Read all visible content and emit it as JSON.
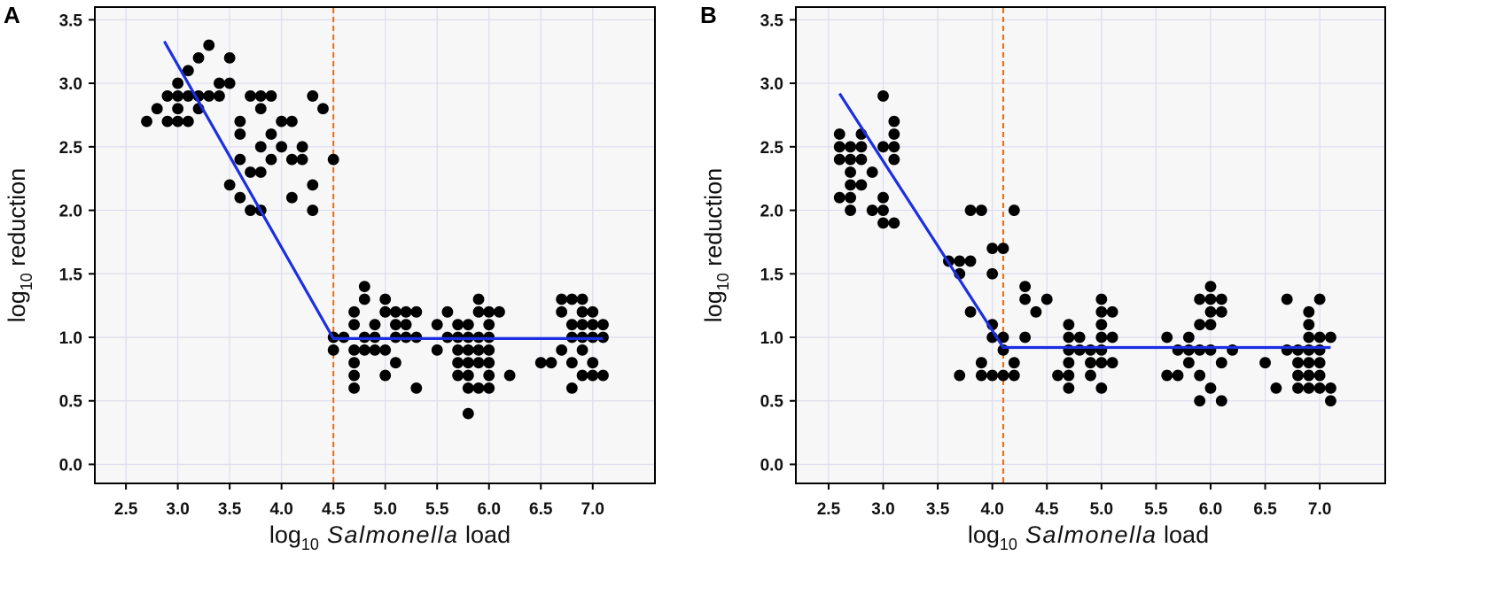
{
  "chart_data": [
    {
      "type": "scatter",
      "panel_label": "A",
      "xlabel": {
        "prefix": "log",
        "sub": "10",
        "italic": "Salmonella",
        "suffix": "load"
      },
      "ylabel": {
        "prefix": "log",
        "sub": "10",
        "suffix": "reduction"
      },
      "xlim": [
        2.2,
        7.6
      ],
      "ylim": [
        -0.15,
        3.6
      ],
      "xticks": [
        "2.5",
        "3.0",
        "3.5",
        "4.0",
        "4.5",
        "5.0",
        "5.5",
        "6.0",
        "6.5",
        "7.0"
      ],
      "yticks": [
        "0.0",
        "0.5",
        "1.0",
        "1.5",
        "2.0",
        "2.5",
        "3.0",
        "3.5"
      ],
      "breakpoint_x": 4.5,
      "fit_line": [
        [
          2.87,
          3.33
        ],
        [
          4.5,
          0.99
        ],
        [
          7.1,
          0.99
        ]
      ],
      "points": [
        [
          2.7,
          2.7
        ],
        [
          2.8,
          2.8
        ],
        [
          2.9,
          2.9
        ],
        [
          2.9,
          2.7
        ],
        [
          3.0,
          3.0
        ],
        [
          3.0,
          2.9
        ],
        [
          3.0,
          2.8
        ],
        [
          3.0,
          2.7
        ],
        [
          3.1,
          3.1
        ],
        [
          3.1,
          2.9
        ],
        [
          3.1,
          2.7
        ],
        [
          3.2,
          3.2
        ],
        [
          3.2,
          2.9
        ],
        [
          3.2,
          2.8
        ],
        [
          3.3,
          3.3
        ],
        [
          3.3,
          2.9
        ],
        [
          3.4,
          3.0
        ],
        [
          3.4,
          2.9
        ],
        [
          3.5,
          3.2
        ],
        [
          3.5,
          3.0
        ],
        [
          3.5,
          2.2
        ],
        [
          3.6,
          2.7
        ],
        [
          3.6,
          2.6
        ],
        [
          3.6,
          2.4
        ],
        [
          3.6,
          2.1
        ],
        [
          3.7,
          2.3
        ],
        [
          3.7,
          2.0
        ],
        [
          3.7,
          2.9
        ],
        [
          3.8,
          2.9
        ],
        [
          3.8,
          2.3
        ],
        [
          3.8,
          2.0
        ],
        [
          3.8,
          2.5
        ],
        [
          3.8,
          2.8
        ],
        [
          3.9,
          2.9
        ],
        [
          3.9,
          2.6
        ],
        [
          3.9,
          2.4
        ],
        [
          4.0,
          2.7
        ],
        [
          4.0,
          2.5
        ],
        [
          4.1,
          2.7
        ],
        [
          4.1,
          2.4
        ],
        [
          4.1,
          2.1
        ],
        [
          4.2,
          2.5
        ],
        [
          4.2,
          2.4
        ],
        [
          4.3,
          2.9
        ],
        [
          4.3,
          2.0
        ],
        [
          4.3,
          2.2
        ],
        [
          4.4,
          2.8
        ],
        [
          4.5,
          2.4
        ],
        [
          4.5,
          1.0
        ],
        [
          4.5,
          0.9
        ],
        [
          4.6,
          1.0
        ],
        [
          4.7,
          1.2
        ],
        [
          4.7,
          1.1
        ],
        [
          4.7,
          0.9
        ],
        [
          4.7,
          0.8
        ],
        [
          4.7,
          0.7
        ],
        [
          4.7,
          0.6
        ],
        [
          4.8,
          1.3
        ],
        [
          4.8,
          1.4
        ],
        [
          4.8,
          1.0
        ],
        [
          4.8,
          0.9
        ],
        [
          4.9,
          1.1
        ],
        [
          4.9,
          1.0
        ],
        [
          4.9,
          0.9
        ],
        [
          5.0,
          1.3
        ],
        [
          5.0,
          1.2
        ],
        [
          5.0,
          0.9
        ],
        [
          5.0,
          0.7
        ],
        [
          5.1,
          1.2
        ],
        [
          5.1,
          1.1
        ],
        [
          5.1,
          1.0
        ],
        [
          5.1,
          0.8
        ],
        [
          5.2,
          1.2
        ],
        [
          5.2,
          1.1
        ],
        [
          5.2,
          1.0
        ],
        [
          5.3,
          1.2
        ],
        [
          5.3,
          1.0
        ],
        [
          5.3,
          0.6
        ],
        [
          5.5,
          1.1
        ],
        [
          5.5,
          0.9
        ],
        [
          5.6,
          1.2
        ],
        [
          5.6,
          1.0
        ],
        [
          5.7,
          1.1
        ],
        [
          5.7,
          1.0
        ],
        [
          5.7,
          0.9
        ],
        [
          5.7,
          0.8
        ],
        [
          5.7,
          0.7
        ],
        [
          5.8,
          1.1
        ],
        [
          5.8,
          1.0
        ],
        [
          5.8,
          0.9
        ],
        [
          5.8,
          0.8
        ],
        [
          5.8,
          0.7
        ],
        [
          5.8,
          0.6
        ],
        [
          5.8,
          0.4
        ],
        [
          5.9,
          1.3
        ],
        [
          5.9,
          1.2
        ],
        [
          5.9,
          1.0
        ],
        [
          5.9,
          0.9
        ],
        [
          5.9,
          0.8
        ],
        [
          5.9,
          0.6
        ],
        [
          6.0,
          1.2
        ],
        [
          6.0,
          1.1
        ],
        [
          6.0,
          1.0
        ],
        [
          6.0,
          0.9
        ],
        [
          6.0,
          0.8
        ],
        [
          6.0,
          0.7
        ],
        [
          6.0,
          0.6
        ],
        [
          6.1,
          1.2
        ],
        [
          6.2,
          0.7
        ],
        [
          6.5,
          0.8
        ],
        [
          6.6,
          0.8
        ],
        [
          6.7,
          1.3
        ],
        [
          6.7,
          1.2
        ],
        [
          6.7,
          0.9
        ],
        [
          6.8,
          1.3
        ],
        [
          6.8,
          1.1
        ],
        [
          6.8,
          1.0
        ],
        [
          6.8,
          0.8
        ],
        [
          6.8,
          0.6
        ],
        [
          6.9,
          1.3
        ],
        [
          6.9,
          1.2
        ],
        [
          6.9,
          1.1
        ],
        [
          6.9,
          1.0
        ],
        [
          6.9,
          0.9
        ],
        [
          6.9,
          0.7
        ],
        [
          7.0,
          1.2
        ],
        [
          7.0,
          1.1
        ],
        [
          7.0,
          1.0
        ],
        [
          7.0,
          0.8
        ],
        [
          7.0,
          0.7
        ],
        [
          7.1,
          1.1
        ],
        [
          7.1,
          1.0
        ],
        [
          7.1,
          0.7
        ]
      ]
    },
    {
      "type": "scatter",
      "panel_label": "B",
      "xlabel": {
        "prefix": "log",
        "sub": "10",
        "italic": "Salmonella",
        "suffix": "load"
      },
      "ylabel": {
        "prefix": "log",
        "sub": "10",
        "suffix": "reduction"
      },
      "xlim": [
        2.2,
        7.6
      ],
      "ylim": [
        -0.15,
        3.6
      ],
      "xticks": [
        "2.5",
        "3.0",
        "3.5",
        "4.0",
        "4.5",
        "5.0",
        "5.5",
        "6.0",
        "6.5",
        "7.0"
      ],
      "yticks": [
        "0.0",
        "0.5",
        "1.0",
        "1.5",
        "2.0",
        "2.5",
        "3.0",
        "3.5"
      ],
      "breakpoint_x": 4.1,
      "fit_line": [
        [
          2.6,
          2.92
        ],
        [
          4.1,
          0.92
        ],
        [
          7.1,
          0.92
        ]
      ],
      "points": [
        [
          2.6,
          2.6
        ],
        [
          2.6,
          2.5
        ],
        [
          2.6,
          2.4
        ],
        [
          2.6,
          2.1
        ],
        [
          2.7,
          2.5
        ],
        [
          2.7,
          2.4
        ],
        [
          2.7,
          2.3
        ],
        [
          2.7,
          2.2
        ],
        [
          2.7,
          2.1
        ],
        [
          2.7,
          2.0
        ],
        [
          2.8,
          2.6
        ],
        [
          2.8,
          2.5
        ],
        [
          2.8,
          2.4
        ],
        [
          2.8,
          2.2
        ],
        [
          2.9,
          2.3
        ],
        [
          2.9,
          2.0
        ],
        [
          3.0,
          2.9
        ],
        [
          3.0,
          2.5
        ],
        [
          3.0,
          2.0
        ],
        [
          3.0,
          1.9
        ],
        [
          3.0,
          2.1
        ],
        [
          3.1,
          2.7
        ],
        [
          3.1,
          2.6
        ],
        [
          3.1,
          2.5
        ],
        [
          3.1,
          2.4
        ],
        [
          3.1,
          1.9
        ],
        [
          3.6,
          1.6
        ],
        [
          3.7,
          1.6
        ],
        [
          3.7,
          1.5
        ],
        [
          3.7,
          0.7
        ],
        [
          3.8,
          2.0
        ],
        [
          3.8,
          1.6
        ],
        [
          3.8,
          1.2
        ],
        [
          3.9,
          2.0
        ],
        [
          3.9,
          0.8
        ],
        [
          3.9,
          0.7
        ],
        [
          4.0,
          1.7
        ],
        [
          4.0,
          1.5
        ],
        [
          4.0,
          1.1
        ],
        [
          4.0,
          1.0
        ],
        [
          4.0,
          0.7
        ],
        [
          4.1,
          1.7
        ],
        [
          4.1,
          1.0
        ],
        [
          4.1,
          0.9
        ],
        [
          4.1,
          0.7
        ],
        [
          4.2,
          2.0
        ],
        [
          4.2,
          0.8
        ],
        [
          4.2,
          0.7
        ],
        [
          4.3,
          1.4
        ],
        [
          4.3,
          1.3
        ],
        [
          4.3,
          1.0
        ],
        [
          4.4,
          1.2
        ],
        [
          4.5,
          1.3
        ],
        [
          4.6,
          0.7
        ],
        [
          4.7,
          1.1
        ],
        [
          4.7,
          1.0
        ],
        [
          4.7,
          0.9
        ],
        [
          4.7,
          0.8
        ],
        [
          4.7,
          0.7
        ],
        [
          4.7,
          0.6
        ],
        [
          4.8,
          1.0
        ],
        [
          4.8,
          0.9
        ],
        [
          4.9,
          0.9
        ],
        [
          4.9,
          0.8
        ],
        [
          4.9,
          0.7
        ],
        [
          5.0,
          1.3
        ],
        [
          5.0,
          1.2
        ],
        [
          5.0,
          1.1
        ],
        [
          5.0,
          1.0
        ],
        [
          5.0,
          0.9
        ],
        [
          5.0,
          0.8
        ],
        [
          5.0,
          0.6
        ],
        [
          5.1,
          1.2
        ],
        [
          5.1,
          1.0
        ],
        [
          5.1,
          0.8
        ],
        [
          5.6,
          1.0
        ],
        [
          5.6,
          0.7
        ],
        [
          5.7,
          0.9
        ],
        [
          5.7,
          0.7
        ],
        [
          5.8,
          1.0
        ],
        [
          5.8,
          0.9
        ],
        [
          5.8,
          0.8
        ],
        [
          5.9,
          1.3
        ],
        [
          5.9,
          1.1
        ],
        [
          5.9,
          0.9
        ],
        [
          5.9,
          0.7
        ],
        [
          5.9,
          0.5
        ],
        [
          6.0,
          1.4
        ],
        [
          6.0,
          1.3
        ],
        [
          6.0,
          1.2
        ],
        [
          6.0,
          1.1
        ],
        [
          6.0,
          0.9
        ],
        [
          6.0,
          0.6
        ],
        [
          6.1,
          1.3
        ],
        [
          6.1,
          1.2
        ],
        [
          6.1,
          0.8
        ],
        [
          6.1,
          0.5
        ],
        [
          6.2,
          0.9
        ],
        [
          6.5,
          0.8
        ],
        [
          6.6,
          0.6
        ],
        [
          6.7,
          1.3
        ],
        [
          6.7,
          0.9
        ],
        [
          6.8,
          0.9
        ],
        [
          6.8,
          0.8
        ],
        [
          6.8,
          0.7
        ],
        [
          6.8,
          0.6
        ],
        [
          6.9,
          1.2
        ],
        [
          6.9,
          1.1
        ],
        [
          6.9,
          1.0
        ],
        [
          6.9,
          0.9
        ],
        [
          6.9,
          0.8
        ],
        [
          6.9,
          0.7
        ],
        [
          6.9,
          0.6
        ],
        [
          7.0,
          1.3
        ],
        [
          7.0,
          1.0
        ],
        [
          7.0,
          0.9
        ],
        [
          7.0,
          0.8
        ],
        [
          7.0,
          0.7
        ],
        [
          7.0,
          0.6
        ],
        [
          7.1,
          1.0
        ],
        [
          7.1,
          0.6
        ],
        [
          7.1,
          0.5
        ]
      ]
    }
  ],
  "style": {
    "point_color": "#000000",
    "fit_color": "#1a2fe0",
    "breakpoint_color": "#f06a10",
    "grid_color": "#dcdcf0",
    "plot_bg": "#f7f7f7"
  }
}
